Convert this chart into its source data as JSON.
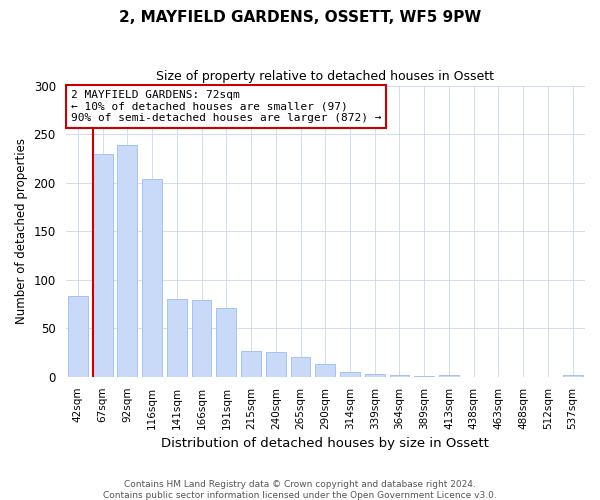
{
  "title1": "2, MAYFIELD GARDENS, OSSETT, WF5 9PW",
  "title2": "Size of property relative to detached houses in Ossett",
  "xlabel": "Distribution of detached houses by size in Ossett",
  "ylabel": "Number of detached properties",
  "bar_labels": [
    "42sqm",
    "67sqm",
    "92sqm",
    "116sqm",
    "141sqm",
    "166sqm",
    "191sqm",
    "215sqm",
    "240sqm",
    "265sqm",
    "290sqm",
    "314sqm",
    "339sqm",
    "364sqm",
    "389sqm",
    "413sqm",
    "438sqm",
    "463sqm",
    "488sqm",
    "512sqm",
    "537sqm"
  ],
  "bar_values": [
    83,
    230,
    239,
    204,
    80,
    79,
    71,
    27,
    26,
    20,
    13,
    5,
    3,
    2,
    1,
    2,
    0,
    0,
    0,
    0,
    2
  ],
  "bar_color": "#c9daf8",
  "bar_edge_color": "#a4c2f4",
  "property_line_color": "#cc0000",
  "annotation_title": "2 MAYFIELD GARDENS: 72sqm",
  "annotation_line1": "← 10% of detached houses are smaller (97)",
  "annotation_line2": "90% of semi-detached houses are larger (872) →",
  "annotation_box_edge": "#cc0000",
  "ylim": [
    0,
    300
  ],
  "yticks": [
    0,
    50,
    100,
    150,
    200,
    250,
    300
  ],
  "footer1": "Contains HM Land Registry data © Crown copyright and database right 2024.",
  "footer2": "Contains public sector information licensed under the Open Government Licence v3.0."
}
